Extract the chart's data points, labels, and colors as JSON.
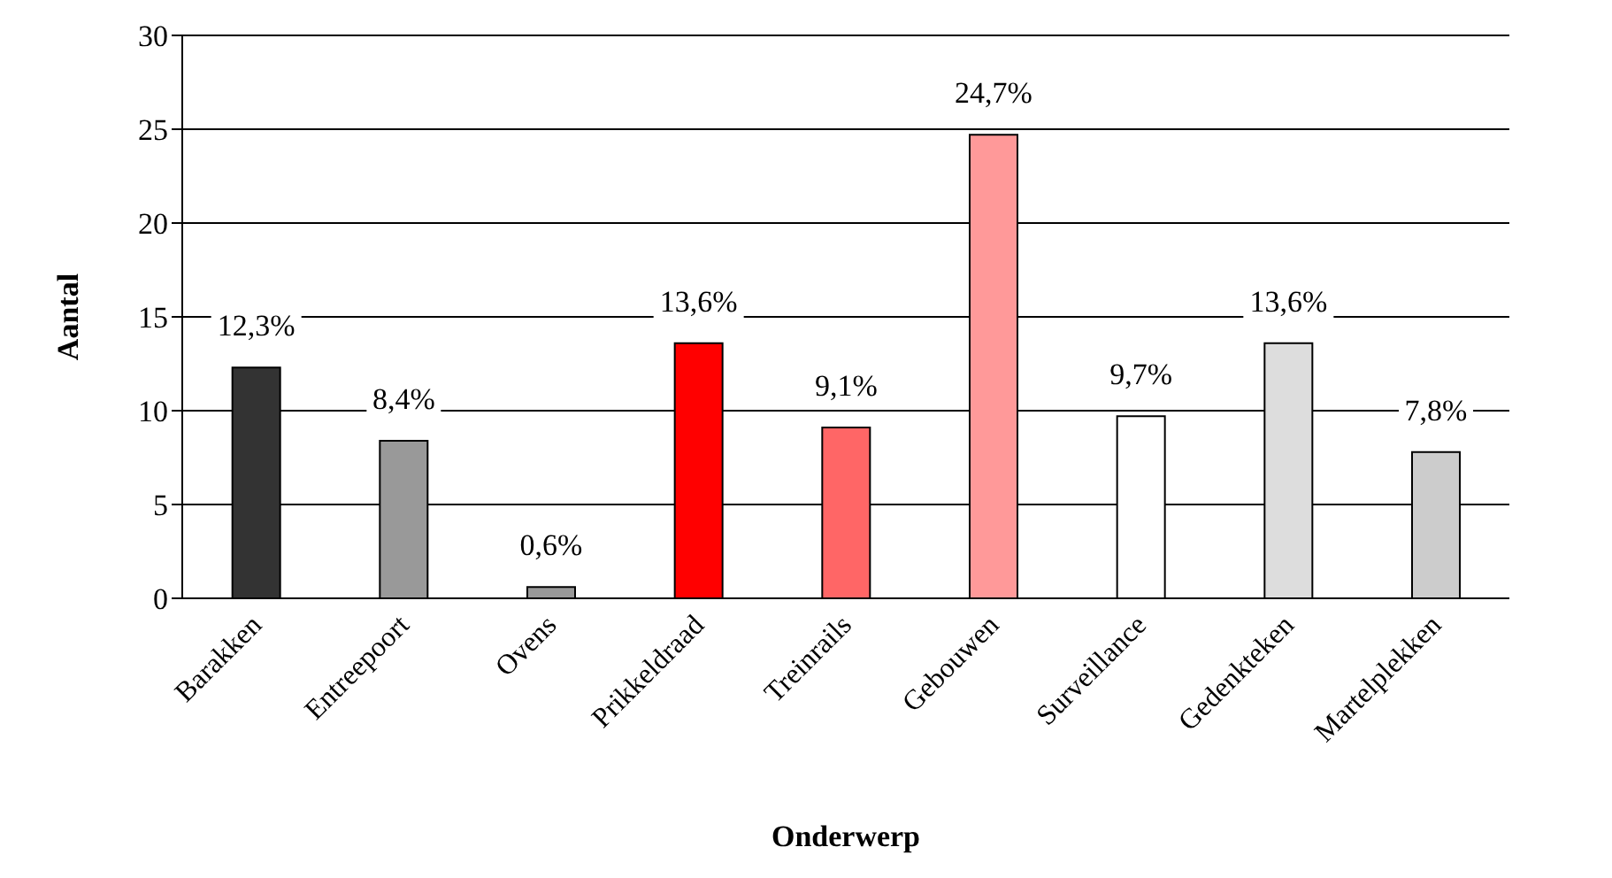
{
  "chart_data": {
    "type": "bar",
    "xlabel": "Onderwerp",
    "ylabel": "Aantal",
    "categories": [
      "Barakken",
      "Entreepoort",
      "Ovens",
      "Prikkeldraad",
      "Treinrails",
      "Gebouwen",
      "Surveillance",
      "Gedenkteken",
      "Martelplekken"
    ],
    "values": [
      12.3,
      8.4,
      0.6,
      13.6,
      9.1,
      24.7,
      9.7,
      13.6,
      7.8
    ],
    "colors": [
      "#333333",
      "#999999",
      "#999999",
      "#ff0000",
      "#ff6666",
      "#ff9999",
      "#ffffff",
      "#dddddd",
      "#cccccc"
    ],
    "value_labels": [
      "12,3%",
      "8,4%",
      "0,6%",
      "13,6%",
      "9,1%",
      "24,7%",
      "9,7%",
      "13,6%",
      "7,8%"
    ],
    "ylim": [
      0,
      30
    ],
    "yticks": [
      0,
      5,
      10,
      15,
      20,
      25,
      30
    ],
    "grid": "y"
  }
}
